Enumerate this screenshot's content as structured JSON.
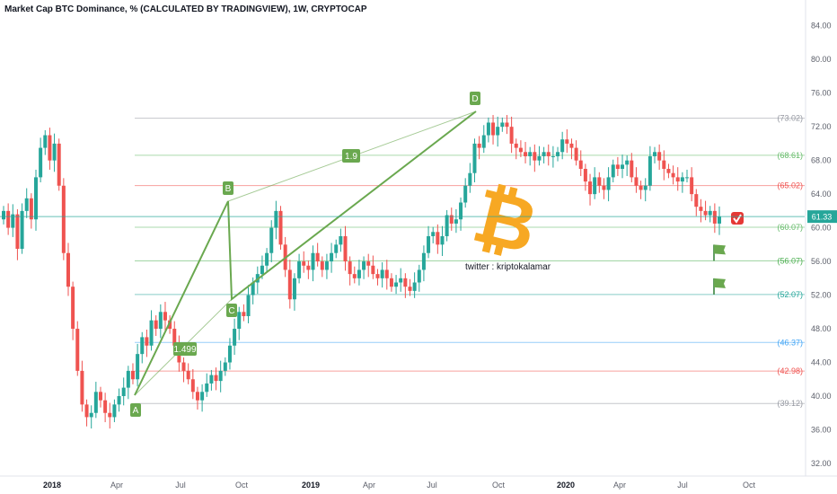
{
  "chart_title": "Market Cap BTC Dominance, % (CALCULATED BY TRADINGVIEW), 1W, CRYPTOCAP",
  "watermark_text": "twitter : kriptokalamar",
  "colors": {
    "up": "#26a69a",
    "down": "#ef5350",
    "pattern": "#6aa84f",
    "bitcoin": "#f7a823",
    "price_line": "#26a69a",
    "price_badge": "#26a69a",
    "target_check": "#e53935"
  },
  "chart_data": {
    "type": "candlestick",
    "title": "Market Cap BTC Dominance, % (CALCULATED BY TRADINGVIEW), 1W, CRYPTOCAP",
    "timeframe": "1W",
    "y_ticks": [
      "84.00",
      "80.00",
      "76.00",
      "72.00",
      "68.00",
      "64.00",
      "60.00",
      "56.00",
      "52.00",
      "48.00",
      "44.00",
      "40.00",
      "36.00",
      "32.00"
    ],
    "ylim": [
      30.5,
      86
    ],
    "x_ticks": [
      "2018",
      "Apr",
      "Jul",
      "Oct",
      "2019",
      "Apr",
      "Jul",
      "Oct",
      "2020",
      "Apr",
      "Jul",
      "Oct"
    ],
    "current_price": "61.33",
    "harmonic_points": [
      {
        "label": "A",
        "value": 39.5
      },
      {
        "label": "B",
        "value": 62.7
      },
      {
        "label": "C",
        "value": 51.0
      },
      {
        "label": "D",
        "value": 73.3
      }
    ],
    "ratio_labels": [
      "1.9",
      "1.499"
    ],
    "fib_levels": [
      {
        "label": "(73.02)",
        "value": 73.02,
        "color": "#9598a1"
      },
      {
        "label": "(68.61)",
        "value": 68.61,
        "color": "#66bb6a"
      },
      {
        "label": "(65.02)",
        "value": 65.02,
        "color": "#ef5350"
      },
      {
        "label": "(60.07)",
        "value": 60.07,
        "color": "#66bb6a"
      },
      {
        "label": "(56.07)",
        "value": 56.07,
        "color": "#4caf50"
      },
      {
        "label": "(52.07)",
        "value": 52.07,
        "color": "#26a69a"
      },
      {
        "label": "(46.37)",
        "value": 46.37,
        "color": "#42a5f5"
      },
      {
        "label": "(42.98)",
        "value": 42.98,
        "color": "#ef5350"
      },
      {
        "label": "(39.12)",
        "value": 39.12,
        "color": "#9598a1"
      }
    ],
    "flags": [
      56.07,
      52.07
    ],
    "closes": [
      62,
      60,
      61.6,
      57.5,
      62,
      63.5,
      61,
      66,
      69.5,
      71,
      68,
      70,
      65,
      57,
      53,
      48,
      43,
      39,
      37.5,
      38,
      40.5,
      39.5,
      38,
      37.5,
      39,
      40,
      41,
      43,
      42,
      45,
      47,
      46,
      49,
      48,
      50,
      49,
      48,
      46,
      44,
      43,
      42,
      40.5,
      39.5,
      40.5,
      41.5,
      42.5,
      41.8,
      43,
      44,
      46,
      48,
      50,
      49.5,
      52,
      53.5,
      54.5,
      55.5,
      57,
      60,
      62,
      58,
      55,
      51.5,
      54,
      56,
      55.5,
      55,
      57,
      56,
      55,
      56,
      57,
      58,
      59,
      56,
      54.5,
      54,
      55,
      56,
      55.5,
      54.5,
      54,
      55,
      54,
      53,
      53.5,
      54,
      53,
      52.5,
      53.5,
      55,
      57,
      59,
      59.5,
      58,
      59,
      61.5,
      60.5,
      61,
      63,
      65,
      66.5,
      70,
      69.5,
      71,
      72.5,
      71,
      72,
      72.5,
      72,
      70,
      69.5,
      69,
      68.5,
      69,
      68,
      68.5,
      69,
      68.5,
      68.5,
      69,
      70.5,
      70,
      69.5,
      68,
      67,
      65.5,
      64,
      66,
      65,
      64.5,
      66,
      67.5,
      67,
      67.5,
      68,
      66,
      65,
      64.5,
      65,
      68.5,
      69,
      68,
      67,
      66.5,
      66,
      65.5,
      66,
      66,
      64,
      62.5,
      62,
      61.5,
      62,
      60.5,
      61.33
    ]
  },
  "badges": {
    "point_a": "A",
    "point_b": "B",
    "point_c": "C",
    "point_d": "D",
    "ratio_bd": "1.9",
    "ratio_ac": "1.499"
  },
  "bitcoin_symbol": "₿"
}
